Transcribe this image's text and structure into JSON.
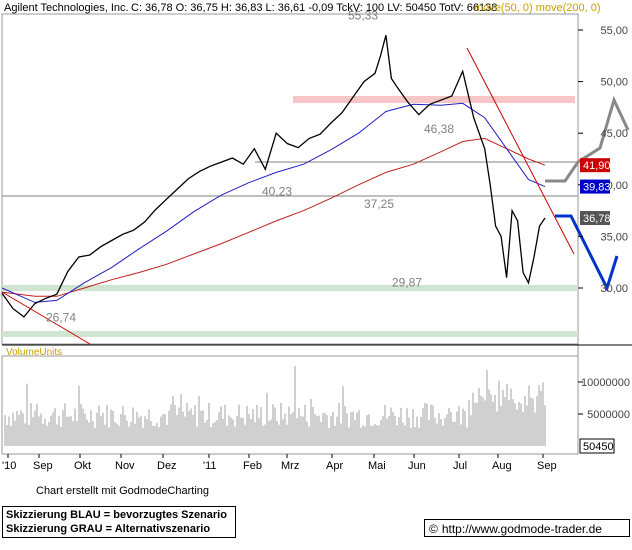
{
  "header": {
    "ticker_name": "Agilent Technologies, Inc.",
    "quote_line": "C: 36,78 O: 36,75 H: 36,83 L: 36,61 -0,09 TckV: 100 LV: 50450 TotV: 66138",
    "moving_averages": "move(50, 0) move(200, 0)"
  },
  "volume_label": "VolumeUnits",
  "footer": {
    "credit": "Chart erstellt mit GodmodeCharting",
    "legend_blue": "Skizzierung BLAU = bevorzugtes Szenario",
    "legend_grey": "Skizzierung GRAU = Alternativszenario",
    "url": "http://www.godmode-trader.de",
    "copyright_symbol": "©"
  },
  "colors": {
    "price": "#000000",
    "ma50": "#2020c0",
    "ma200": "#c02020",
    "trendline": "#cc0000",
    "support_band": "#cfe5cf",
    "resistance_band": "#f6c6c6",
    "scenario_blue": "#0033cc",
    "scenario_grey": "#888888",
    "header_yellow": "#c8a000",
    "volume_bar": "#a0a0a0"
  },
  "chart_data": {
    "type": "line",
    "title": "Agilent Technologies, Inc.",
    "x_axis_labels": [
      "'10",
      "Sep",
      "Okt",
      "Nov",
      "Dez",
      "'11",
      "Feb",
      "Mrz",
      "Apr",
      "Mai",
      "Jun",
      "Jul",
      "Aug",
      "Sep"
    ],
    "y_axis_labels": [
      "55,00",
      "50,00",
      "45,00",
      "40,00",
      "35,00",
      "30,00"
    ],
    "ylim": [
      26,
      57
    ],
    "horizontal_levels": [
      {
        "label": "55,33",
        "value": 55.33
      },
      {
        "label": "46,38",
        "value": 46.38
      },
      {
        "label": "40,23",
        "value": 40.23
      },
      {
        "label": "37,25",
        "value": 37.25
      },
      {
        "label": "29,87",
        "value": 29.87
      },
      {
        "label": "26,74",
        "value": 26.74
      }
    ],
    "value_tags": [
      {
        "label": "41,90",
        "value": 41.9,
        "color": "#cc0000"
      },
      {
        "label": "39,83",
        "value": 39.83,
        "color": "#0000cc"
      },
      {
        "label": "36,78",
        "value": 36.78,
        "color": "#555555"
      }
    ],
    "series": [
      {
        "values": [
          [
            0,
            29.5
          ],
          [
            4,
            28.0
          ],
          [
            8,
            27.2
          ],
          [
            12,
            28.5
          ],
          [
            16,
            29.0
          ],
          [
            20,
            29.4
          ],
          [
            24,
            31.6
          ],
          [
            28,
            33.0
          ],
          [
            32,
            33.2
          ],
          [
            36,
            34.0
          ],
          [
            40,
            34.6
          ],
          [
            44,
            35.2
          ],
          [
            48,
            35.6
          ],
          [
            52,
            36.4
          ],
          [
            56,
            37.6
          ],
          [
            60,
            38.6
          ],
          [
            64,
            39.6
          ],
          [
            68,
            40.6
          ],
          [
            72,
            41.3
          ],
          [
            76,
            41.8
          ],
          [
            80,
            42.2
          ],
          [
            84,
            42.6
          ],
          [
            88,
            42.0
          ],
          [
            92,
            43.5
          ],
          [
            96,
            41.5
          ],
          [
            100,
            45.0
          ],
          [
            104,
            44.0
          ],
          [
            108,
            43.6
          ],
          [
            112,
            44.5
          ],
          [
            116,
            44.9
          ],
          [
            120,
            46.0
          ],
          [
            124,
            47.0
          ],
          [
            128,
            48.5
          ],
          [
            132,
            50.0
          ],
          [
            136,
            50.8
          ],
          [
            138,
            52.5
          ],
          [
            140,
            54.5
          ],
          [
            142,
            50.3
          ],
          [
            144,
            49.5
          ],
          [
            148,
            48.0
          ],
          [
            152,
            46.8
          ],
          [
            156,
            47.8
          ],
          [
            160,
            48.2
          ],
          [
            164,
            48.6
          ],
          [
            168,
            51.0
          ],
          [
            172,
            46.5
          ],
          [
            176,
            43.5
          ],
          [
            178,
            40.0
          ],
          [
            180,
            36.0
          ],
          [
            182,
            35.0
          ],
          [
            184,
            31.0
          ],
          [
            186,
            37.5
          ],
          [
            188,
            36.5
          ],
          [
            190,
            31.5
          ],
          [
            192,
            30.5
          ],
          [
            194,
            33.0
          ],
          [
            196,
            36.0
          ],
          [
            198,
            36.78
          ]
        ]
      },
      {
        "name": "move(50, 0)",
        "values": [
          [
            0,
            30.0
          ],
          [
            12,
            28.6
          ],
          [
            20,
            28.8
          ],
          [
            30,
            30.5
          ],
          [
            40,
            32.0
          ],
          [
            50,
            33.8
          ],
          [
            60,
            35.5
          ],
          [
            70,
            37.4
          ],
          [
            80,
            39.0
          ],
          [
            90,
            40.2
          ],
          [
            100,
            41.2
          ],
          [
            110,
            42.0
          ],
          [
            120,
            43.4
          ],
          [
            130,
            45.0
          ],
          [
            140,
            47.1
          ],
          [
            150,
            47.8
          ],
          [
            160,
            47.7
          ],
          [
            168,
            47.9
          ],
          [
            176,
            46.5
          ],
          [
            184,
            43.5
          ],
          [
            192,
            40.5
          ],
          [
            198,
            39.83
          ]
        ]
      },
      {
        "name": "move(200, 0)",
        "values": [
          [
            0,
            29.6
          ],
          [
            12,
            29.2
          ],
          [
            20,
            29.2
          ],
          [
            30,
            30.0
          ],
          [
            40,
            30.8
          ],
          [
            50,
            31.5
          ],
          [
            60,
            32.3
          ],
          [
            70,
            33.3
          ],
          [
            80,
            34.3
          ],
          [
            90,
            35.4
          ],
          [
            100,
            36.5
          ],
          [
            110,
            37.5
          ],
          [
            120,
            38.7
          ],
          [
            130,
            40.0
          ],
          [
            140,
            41.2
          ],
          [
            150,
            42.0
          ],
          [
            160,
            43.2
          ],
          [
            168,
            44.2
          ],
          [
            176,
            44.5
          ],
          [
            184,
            43.5
          ],
          [
            192,
            42.5
          ],
          [
            198,
            41.9
          ]
        ]
      }
    ],
    "volume": {
      "label": "VolumeUnits",
      "y_axis_labels": [
        "10000000",
        "5000000"
      ],
      "last_value_label": "50450"
    }
  }
}
